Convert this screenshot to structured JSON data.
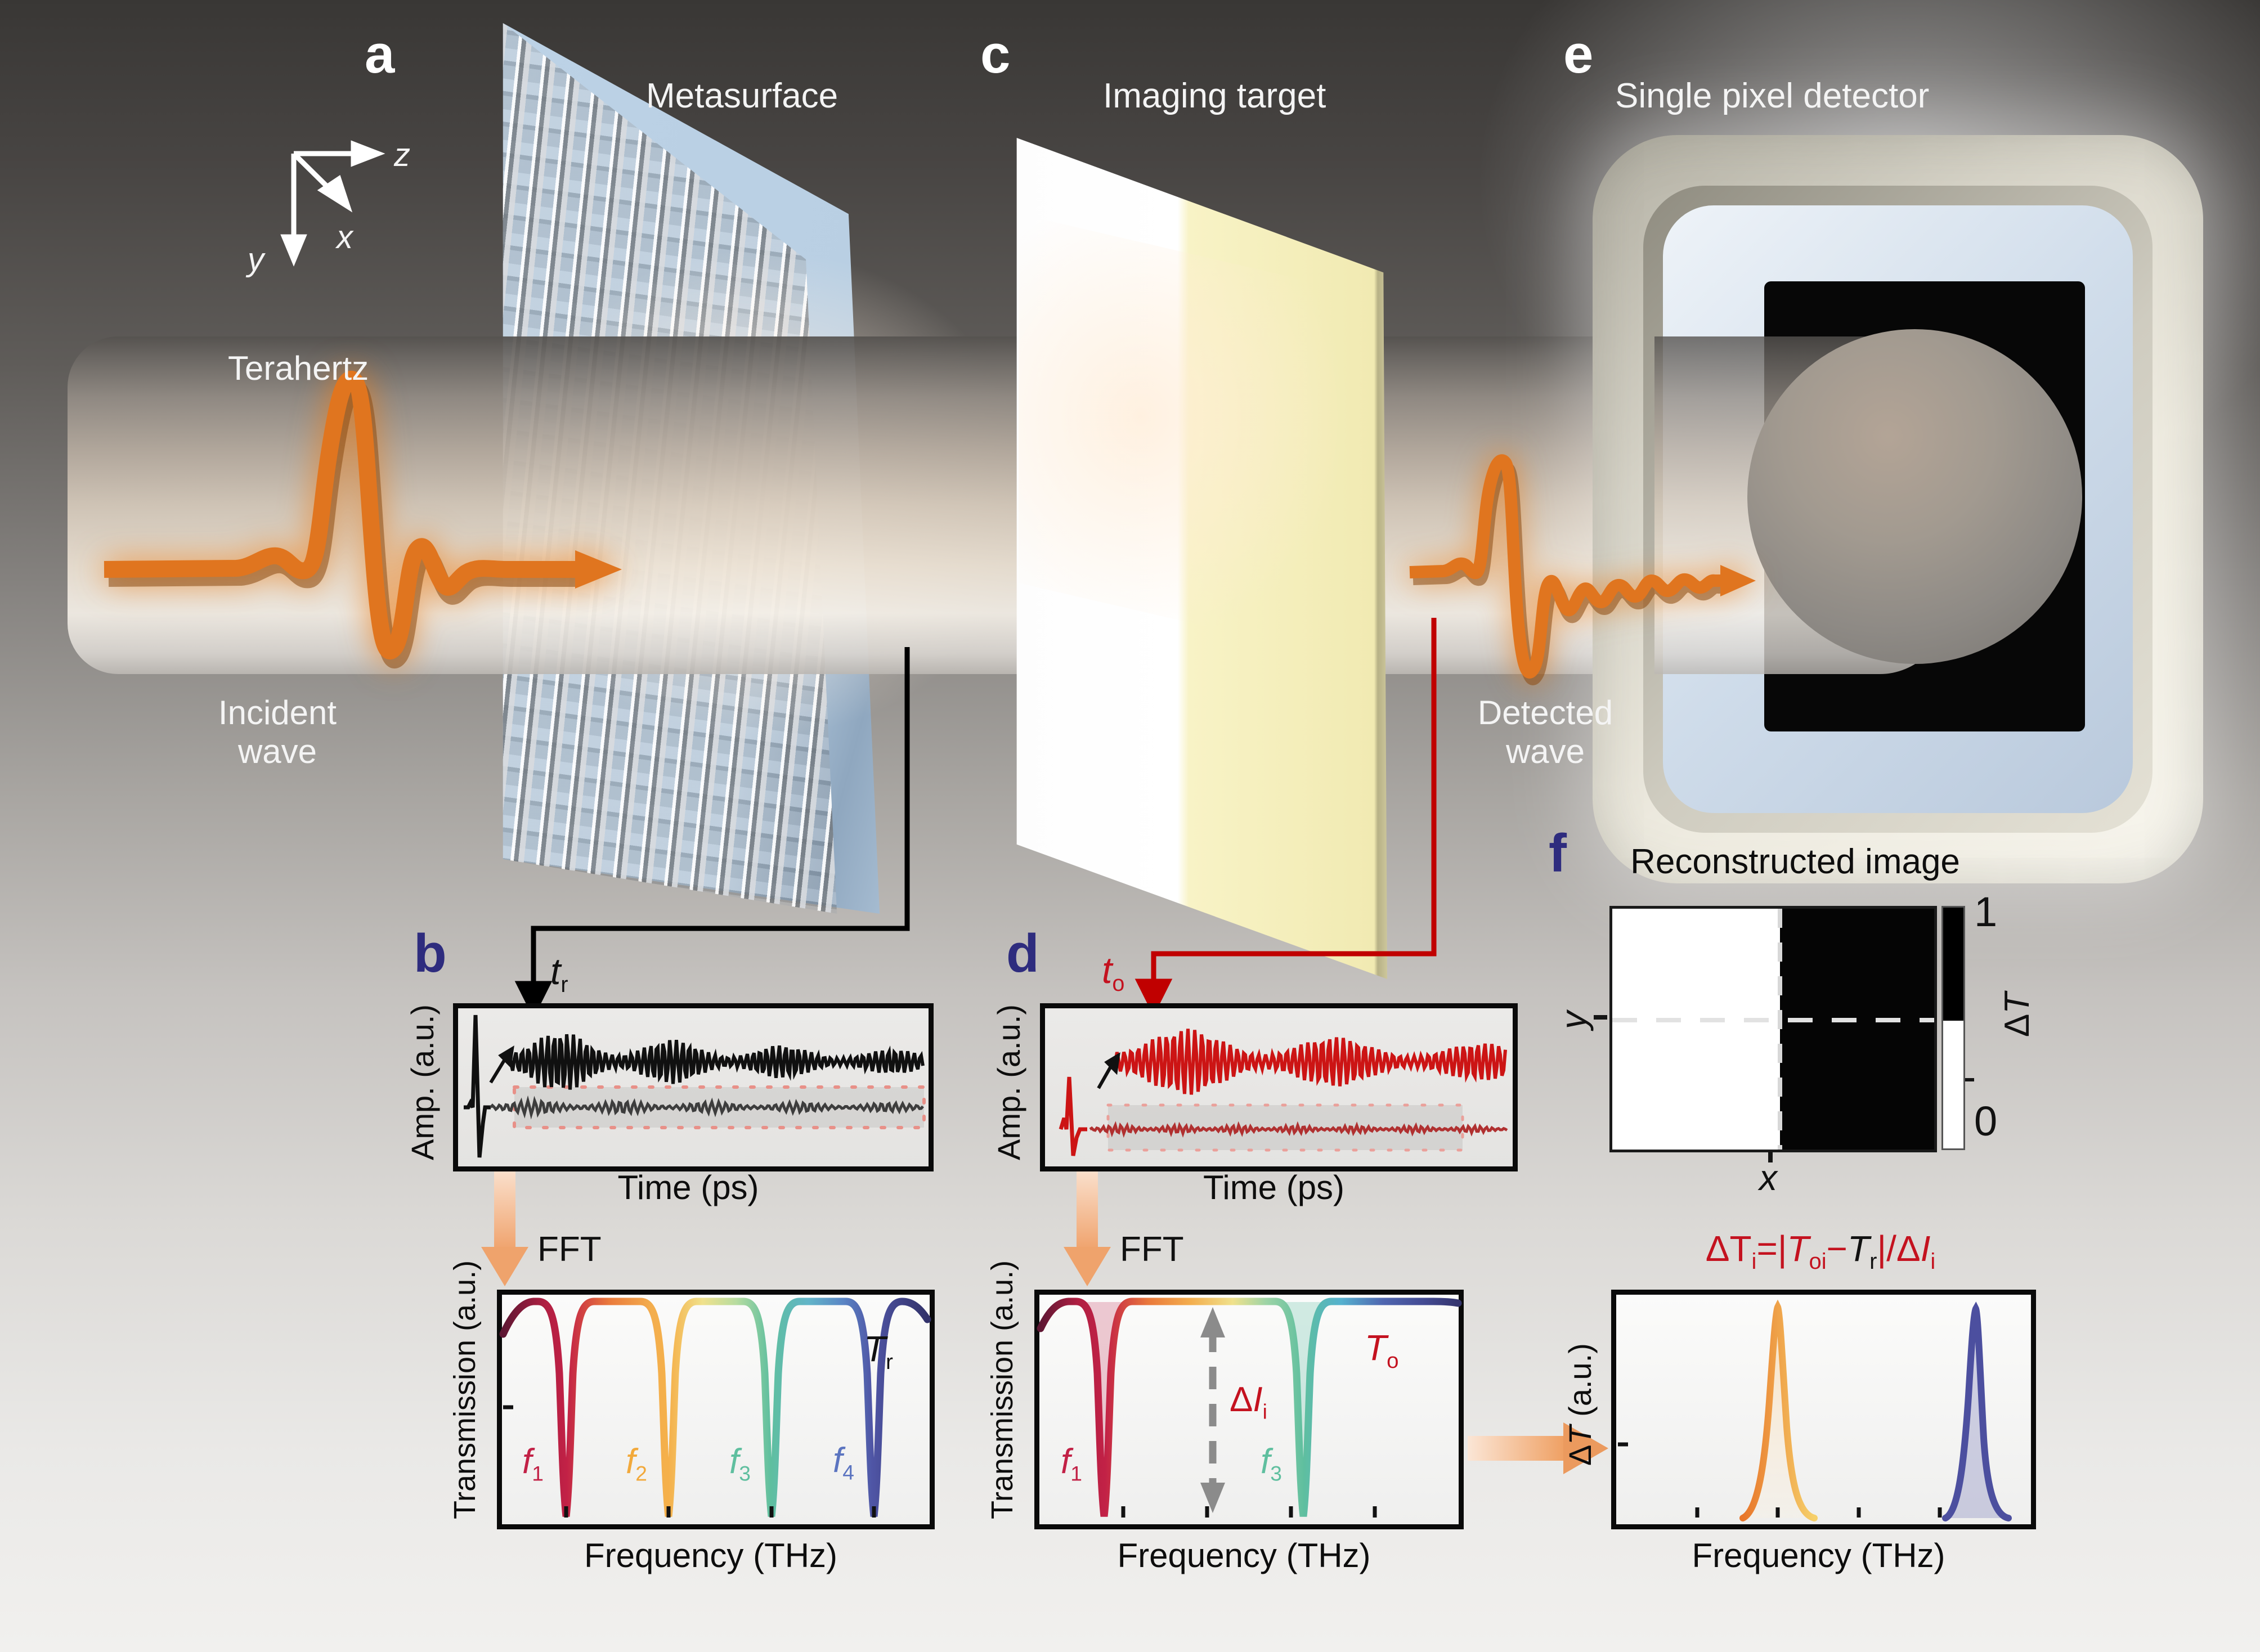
{
  "colors": {
    "panel_letter_light": "#ffffff",
    "panel_letter_dark": "#2e2c7e",
    "pulse_orange": "#e0751f",
    "connector_black": "#000000",
    "connector_red": "#c00000",
    "formula_red": "#c4121f",
    "metasurface_blue": "#b9cfe3",
    "target_yellow": "#f7f2c6",
    "f1": "#c22146",
    "f2": "#f2a93b",
    "f3": "#5fbf9f",
    "f4": "#5b74c0",
    "dt_peak_orange": "#f0a04a",
    "dt_peak_indigo": "#4c4f9f"
  },
  "scene": {
    "panel_letters": {
      "a": "a",
      "b": "b",
      "c": "c",
      "d": "d",
      "e": "e",
      "f": "f"
    },
    "labels": {
      "metasurface": "Metasurface",
      "imaging_target": "Imaging target",
      "single_pixel_detector": "Single pixel detector",
      "terahertz": "Terahertz",
      "incident_line1": "Incident",
      "incident_line2": "wave",
      "detected_line1": "Detected",
      "detected_line2": "wave",
      "fft": "FFT"
    },
    "axes_triad": {
      "z": "z",
      "x": "x",
      "y": "y"
    }
  },
  "annotations": {
    "t_r": {
      "base": "t",
      "sub": "r"
    },
    "t_o": {
      "base": "t",
      "sub": "o"
    },
    "T_r": {
      "base": "T",
      "sub": "r"
    },
    "T_o": {
      "base": "T",
      "sub": "o"
    },
    "delta_I": {
      "pre": "Δ",
      "base": "I",
      "sub": "i"
    },
    "formula": {
      "p1": "ΔT",
      "s1": "i",
      "p2": "=|",
      "p3": "T",
      "s3": "oi",
      "p4": "−",
      "p5": "T",
      "s5": "r",
      "p6": "|/Δ",
      "p7": "I",
      "s7": "i"
    }
  },
  "chart_data": [
    {
      "id": "b_time",
      "type": "line",
      "xlabel": "Time (ps)",
      "ylabel": "Amp. (a.u.)",
      "annotation": "t_r : reference time-domain waveform measured through the metasurface",
      "series": [
        {
          "name": "magnified echo trace",
          "color": "#101010",
          "baseline_frac": 0.34,
          "amp_frac": 0.22,
          "decay": 650,
          "freq": 0.55,
          "burst": 0.016
        },
        {
          "name": "raw reference pulse",
          "color": "#3d3d3d",
          "baseline_frac": 0.63,
          "amp_frac": 0.05,
          "decay": 1400,
          "freq": 0.5,
          "burst": 0.02
        }
      ],
      "zoom_region": "red dotted rectangle around raw trace, magnified to upper trace",
      "legend_position": "none",
      "grid": false
    },
    {
      "id": "b_spectrum",
      "type": "line",
      "xlabel": "Frequency (THz)",
      "ylabel": "Transmission (a.u.)",
      "curve_label": {
        "base": "T",
        "sub": "r"
      },
      "baseline_level": 1.0,
      "dip_level": 0.03,
      "resonances": [
        {
          "base": "f",
          "sub": "1",
          "x_frac": 0.15,
          "color": "#c22146"
        },
        {
          "base": "f",
          "sub": "2",
          "x_frac": 0.39,
          "color": "#f2a93b"
        },
        {
          "base": "f",
          "sub": "3",
          "x_frac": 0.63,
          "color": "#5fbf9f"
        },
        {
          "base": "f",
          "sub": "4",
          "x_frac": 0.87,
          "color": "#5b74c0"
        }
      ],
      "legend_position": "none",
      "grid": false
    },
    {
      "id": "d_time",
      "type": "line",
      "xlabel": "Time (ps)",
      "ylabel": "Amp. (a.u.)",
      "annotation": "t_o : object time-domain waveform measured through metasurface + imaging target",
      "series": [
        {
          "name": "magnified echo trace",
          "color": "#cc1414",
          "baseline_frac": 0.34,
          "amp_frac": 0.24,
          "decay": 900,
          "freq": 0.5,
          "burst": 0.012
        },
        {
          "name": "raw object pulse",
          "color": "#b03030",
          "baseline_frac": 0.77,
          "amp_frac": 0.03,
          "decay": 2500,
          "freq": 0.6,
          "burst": 0.03
        }
      ],
      "zoom_region": "red dotted rectangle around raw trace, magnified to upper trace",
      "legend_position": "none",
      "grid": false
    },
    {
      "id": "d_spectrum",
      "type": "line",
      "xlabel": "Frequency (THz)",
      "ylabel": "Transmission (a.u.)",
      "curve_label": {
        "base": "T",
        "sub": "o"
      },
      "baseline_level": 1.0,
      "dip_level": 0.03,
      "resonances": [
        {
          "base": "f",
          "sub": "1",
          "x_frac": 0.155,
          "color": "#c22146"
        },
        {
          "base": "f",
          "sub": "3",
          "x_frac": 0.63,
          "color": "#5fbf9f"
        }
      ],
      "annotation_arrow": {
        "x_frac": 0.415,
        "label_pre": "Δ",
        "label_base": "I",
        "label_sub": "i",
        "meaning": "intensity difference between covered and uncovered resonances"
      },
      "legend_position": "none",
      "grid": false
    },
    {
      "id": "f_image",
      "type": "heatmap",
      "title": "Reconstructed image",
      "xlabel": "x",
      "ylabel": "y",
      "columns_dT": [
        0,
        1
      ],
      "description": "left half ΔT = 0 (white), right half ΔT = 1 (black); dashed crosshair at centre row / column boundary",
      "colorbar": {
        "label_pre": "Δ",
        "label_base": "T",
        "max": "1",
        "min": "0"
      }
    },
    {
      "id": "dt_spectrum",
      "type": "area",
      "xlabel": "Frequency (THz)",
      "ylabel_pre": "Δ",
      "ylabel_base": "T",
      "ylabel_rest": " (a.u.)",
      "peaks": [
        {
          "x_frac": 0.39,
          "height_frac": 0.95,
          "color": "#f0a04a"
        },
        {
          "x_frac": 0.867,
          "height_frac": 0.95,
          "color": "#4c4f9f"
        }
      ],
      "baseline_level": 0.0,
      "legend_position": "none",
      "grid": false
    }
  ]
}
